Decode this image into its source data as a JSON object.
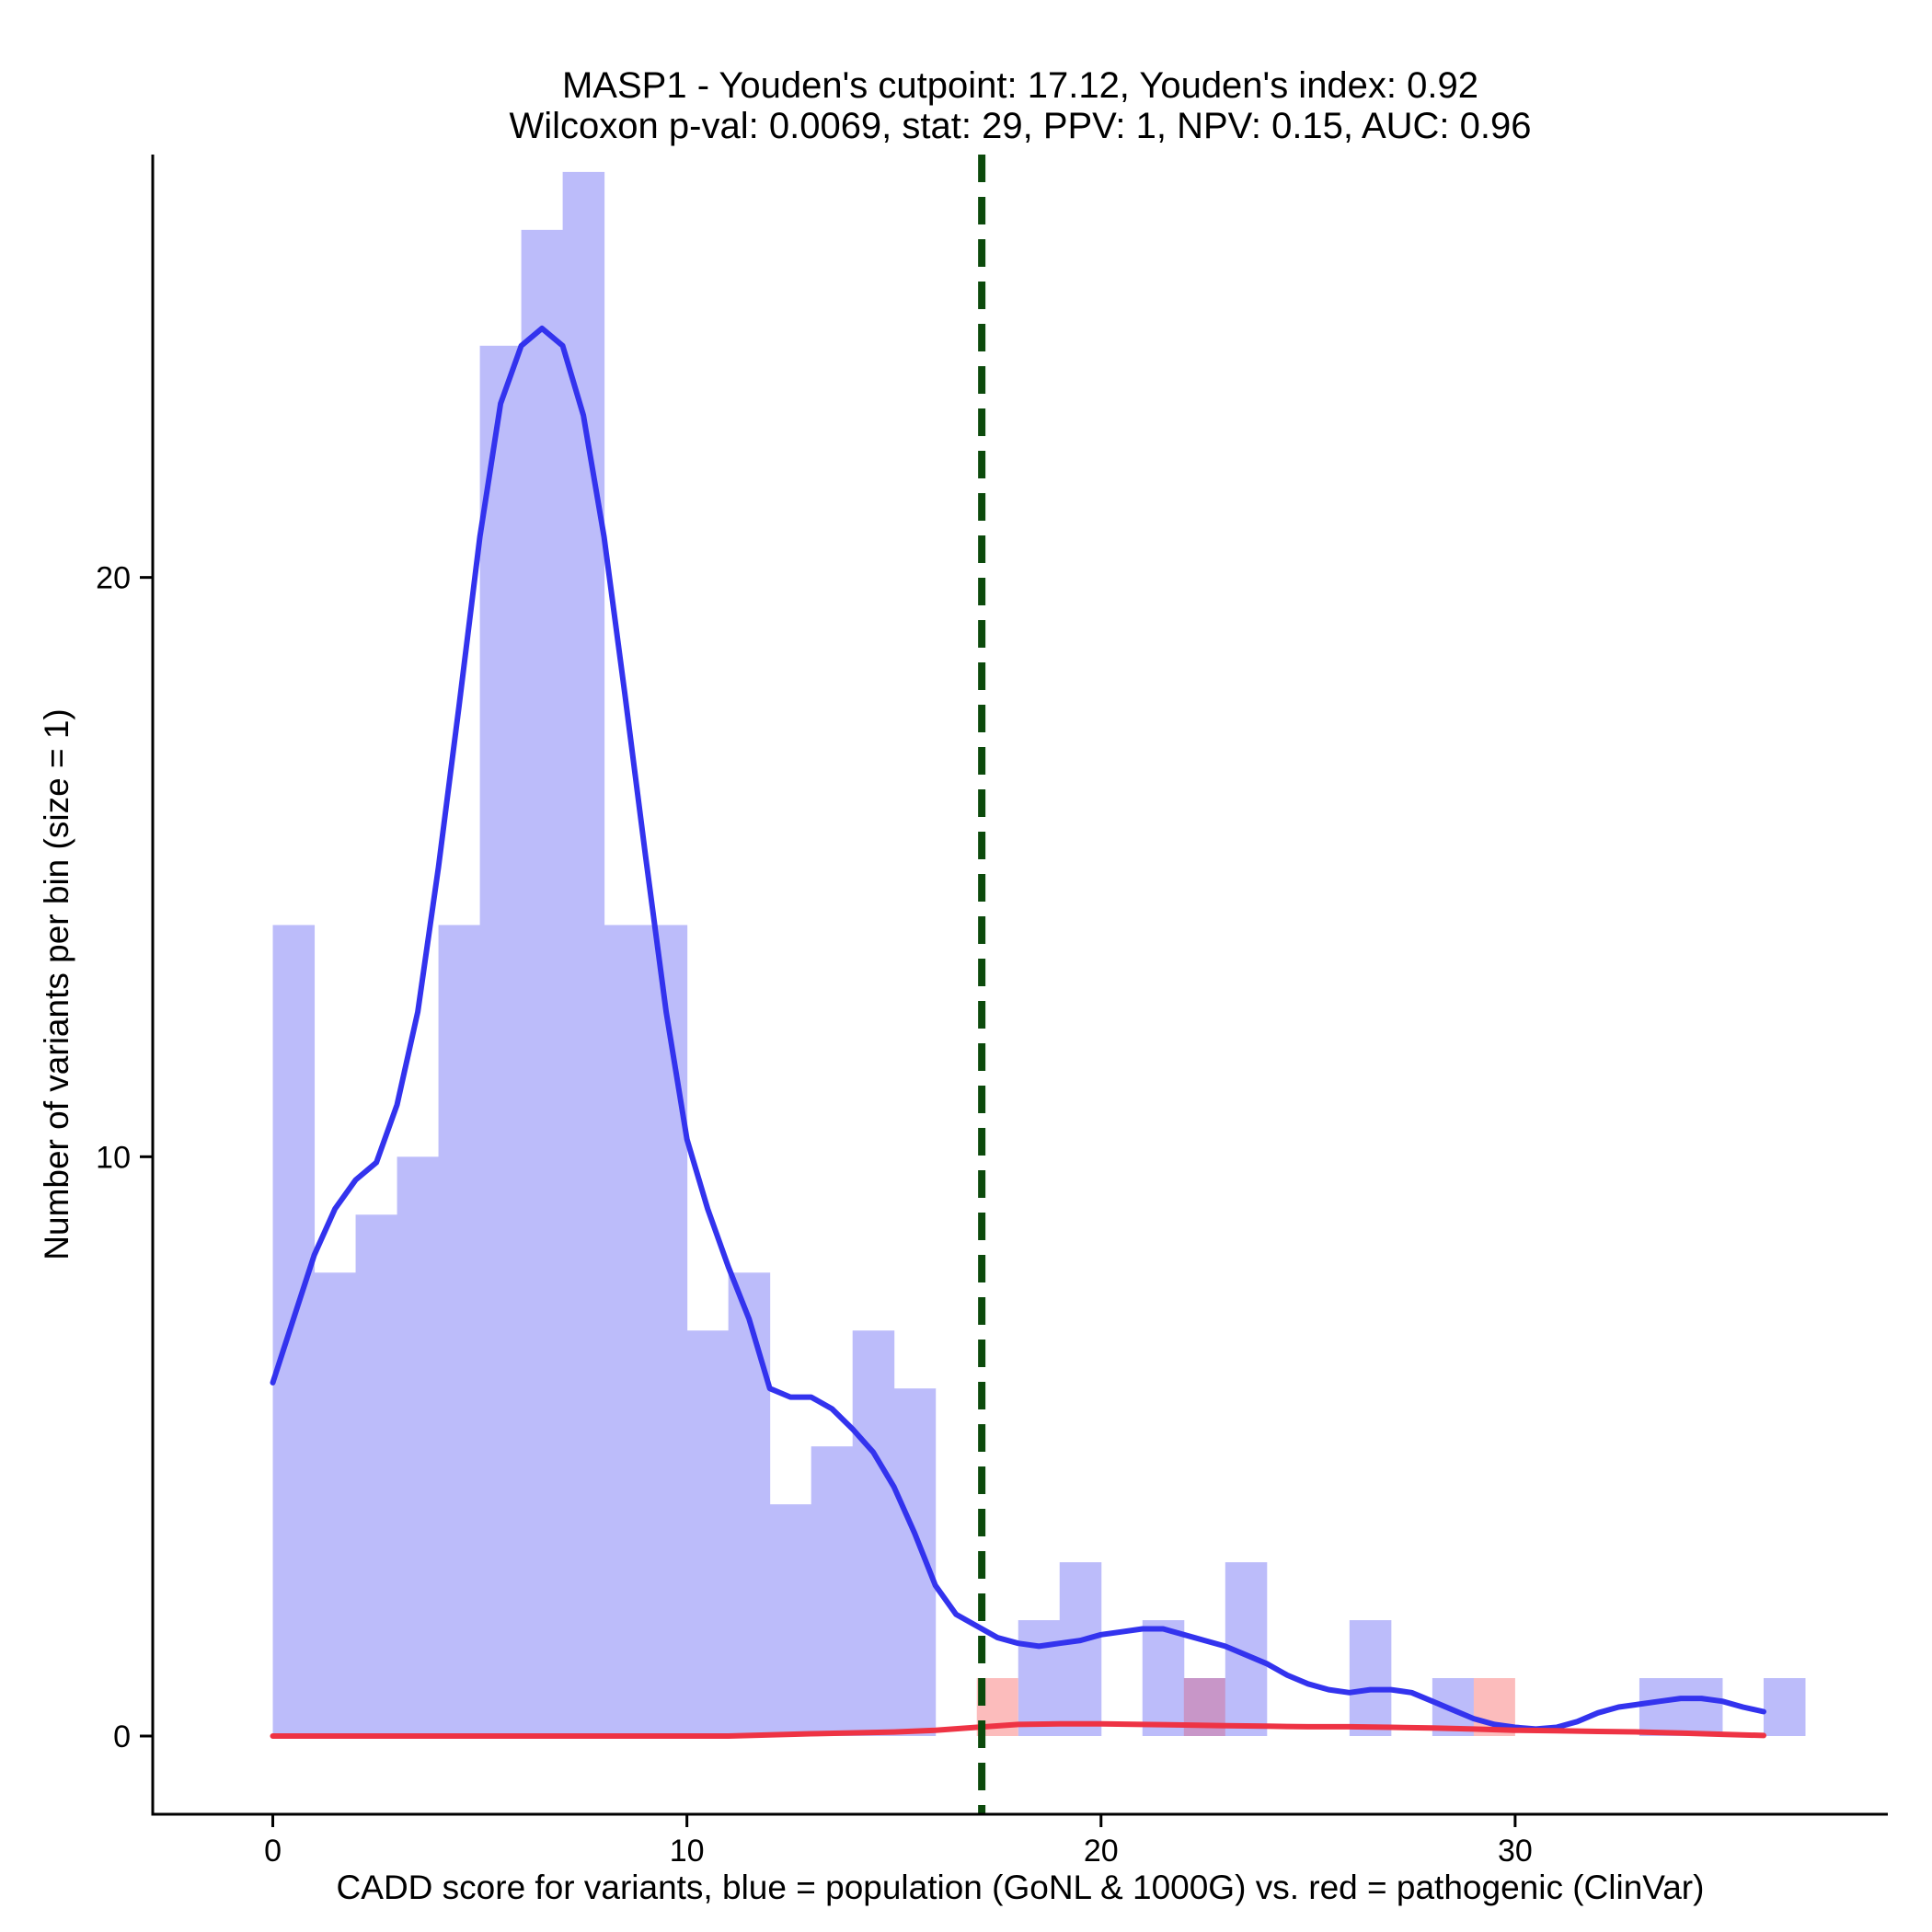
{
  "chart_data": {
    "type": "histogram",
    "title_line1": "MASP1 - Youden's cutpoint: 17.12, Youden's index: 0.92",
    "title_line2": "Wilcoxon p-val: 0.0069, stat: 29, PPV: 1, NPV: 0.15, AUC: 0.96",
    "xlabel": "CADD score for variants, blue = population (GoNL & 1000G) vs. red = pathogenic (ClinVar)",
    "ylabel": "Number of variants per bin (size = 1)",
    "xlim": [
      -2.9,
      39
    ],
    "ylim": [
      -1.35,
      27.3
    ],
    "x_ticks": [
      0,
      10,
      20,
      30
    ],
    "y_ticks": [
      0,
      10,
      20
    ],
    "bin_width": 1,
    "cutpoint": 17.12,
    "colors": {
      "population_bar": "#bcbcfa",
      "pathogenic_bar": "#fcbcbc",
      "overlap_bar": "#c896c8",
      "population_density": "#3333ee",
      "pathogenic_density": "#ee3344",
      "cutpoint_line": "#0c4a0c"
    },
    "series": [
      {
        "name": "population",
        "bins": [
          {
            "x": 0,
            "count": 14
          },
          {
            "x": 1,
            "count": 8
          },
          {
            "x": 2,
            "count": 9
          },
          {
            "x": 3,
            "count": 10
          },
          {
            "x": 4,
            "count": 14
          },
          {
            "x": 5,
            "count": 24
          },
          {
            "x": 6,
            "count": 26
          },
          {
            "x": 7,
            "count": 27
          },
          {
            "x": 8,
            "count": 14
          },
          {
            "x": 9,
            "count": 14
          },
          {
            "x": 10,
            "count": 7
          },
          {
            "x": 11,
            "count": 8
          },
          {
            "x": 12,
            "count": 4
          },
          {
            "x": 13,
            "count": 5
          },
          {
            "x": 14,
            "count": 7
          },
          {
            "x": 15,
            "count": 6
          },
          {
            "x": 18,
            "count": 2
          },
          {
            "x": 19,
            "count": 3
          },
          {
            "x": 21,
            "count": 2
          },
          {
            "x": 22,
            "count": 1
          },
          {
            "x": 23,
            "count": 3
          },
          {
            "x": 26,
            "count": 2
          },
          {
            "x": 28,
            "count": 1
          },
          {
            "x": 33,
            "count": 1
          },
          {
            "x": 34,
            "count": 1
          },
          {
            "x": 36,
            "count": 1
          }
        ]
      },
      {
        "name": "pathogenic",
        "bins": [
          {
            "x": 17,
            "count": 1
          },
          {
            "x": 22,
            "count": 1
          },
          {
            "x": 29,
            "count": 1
          }
        ]
      }
    ],
    "density": [
      {
        "name": "population",
        "points": [
          [
            0,
            6.1
          ],
          [
            0.5,
            7.2
          ],
          [
            1,
            8.3
          ],
          [
            1.5,
            9.1
          ],
          [
            2,
            9.6
          ],
          [
            2.5,
            9.9
          ],
          [
            3,
            10.9
          ],
          [
            3.5,
            12.5
          ],
          [
            4,
            15.0
          ],
          [
            4.5,
            17.8
          ],
          [
            5,
            20.7
          ],
          [
            5.5,
            23.0
          ],
          [
            6,
            24.0
          ],
          [
            6.5,
            24.3
          ],
          [
            7,
            24.0
          ],
          [
            7.5,
            22.8
          ],
          [
            8,
            20.7
          ],
          [
            8.5,
            18.0
          ],
          [
            9,
            15.2
          ],
          [
            9.5,
            12.5
          ],
          [
            10,
            10.3
          ],
          [
            10.5,
            9.1
          ],
          [
            11,
            8.1
          ],
          [
            11.5,
            7.2
          ],
          [
            12,
            6.0
          ],
          [
            12.5,
            5.85
          ],
          [
            13,
            5.85
          ],
          [
            13.5,
            5.65
          ],
          [
            14,
            5.3
          ],
          [
            14.5,
            4.9
          ],
          [
            15,
            4.3
          ],
          [
            15.5,
            3.5
          ],
          [
            16,
            2.6
          ],
          [
            16.5,
            2.1
          ],
          [
            17,
            1.9
          ],
          [
            17.5,
            1.7
          ],
          [
            18,
            1.6
          ],
          [
            18.5,
            1.55
          ],
          [
            19,
            1.6
          ],
          [
            19.5,
            1.65
          ],
          [
            20,
            1.75
          ],
          [
            20.5,
            1.8
          ],
          [
            21,
            1.85
          ],
          [
            21.5,
            1.85
          ],
          [
            22,
            1.75
          ],
          [
            22.5,
            1.65
          ],
          [
            23,
            1.55
          ],
          [
            23.5,
            1.4
          ],
          [
            24,
            1.25
          ],
          [
            24.5,
            1.05
          ],
          [
            25,
            0.9
          ],
          [
            25.5,
            0.8
          ],
          [
            26,
            0.75
          ],
          [
            26.5,
            0.8
          ],
          [
            27,
            0.8
          ],
          [
            27.5,
            0.75
          ],
          [
            28,
            0.6
          ],
          [
            28.5,
            0.45
          ],
          [
            29,
            0.3
          ],
          [
            29.5,
            0.2
          ],
          [
            30,
            0.15
          ],
          [
            30.5,
            0.12
          ],
          [
            31,
            0.15
          ],
          [
            31.5,
            0.25
          ],
          [
            32,
            0.4
          ],
          [
            32.5,
            0.5
          ],
          [
            33,
            0.55
          ],
          [
            33.5,
            0.6
          ],
          [
            34,
            0.65
          ],
          [
            34.5,
            0.65
          ],
          [
            35,
            0.6
          ],
          [
            35.5,
            0.5
          ],
          [
            36,
            0.42
          ]
        ]
      },
      {
        "name": "pathogenic",
        "points": [
          [
            0,
            0.0
          ],
          [
            4,
            0.0
          ],
          [
            8,
            0.0
          ],
          [
            11,
            0.0
          ],
          [
            13,
            0.04
          ],
          [
            15,
            0.07
          ],
          [
            16,
            0.1
          ],
          [
            17,
            0.15
          ],
          [
            18,
            0.2
          ],
          [
            19,
            0.21
          ],
          [
            20,
            0.21
          ],
          [
            21,
            0.2
          ],
          [
            22,
            0.19
          ],
          [
            23,
            0.18
          ],
          [
            24,
            0.17
          ],
          [
            25,
            0.16
          ],
          [
            26,
            0.16
          ],
          [
            27,
            0.15
          ],
          [
            28,
            0.14
          ],
          [
            29,
            0.12
          ],
          [
            30,
            0.1
          ],
          [
            31,
            0.09
          ],
          [
            32,
            0.08
          ],
          [
            33,
            0.07
          ],
          [
            34,
            0.05
          ],
          [
            35,
            0.03
          ],
          [
            36,
            0.01
          ]
        ]
      }
    ]
  }
}
